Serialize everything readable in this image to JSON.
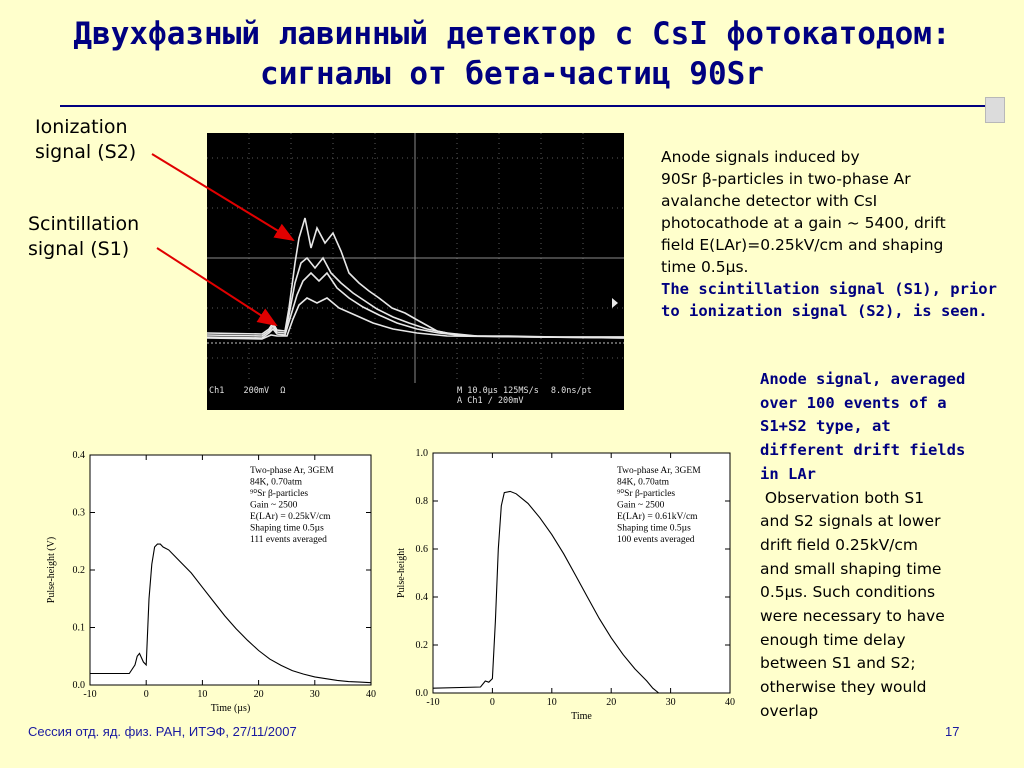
{
  "slide": {
    "title_line1": "Двухфазный лавинный детектор с CsI фотокатодом:",
    "title_line2": "сигналы от бета-частиц 90Sr",
    "footer": "Сессия отд. яд. физ. РАН, ИТЭФ, 27/11/2007",
    "page_number": "17"
  },
  "labels": {
    "ionization_line1": "Ionization",
    "ionization_line2": "signal (S2)",
    "scintillation_line1": "Scintillation",
    "scintillation_line2": "signal (S1)",
    "arrow_color": "#e00000"
  },
  "scope": {
    "ch_label": "Ch1",
    "scale": "200mV",
    "ohm": "Ω",
    "time_setting": "M 10.0µs 125MS/s",
    "resolution": "8.0ns/pt",
    "trigger": "A  Ch1  ∕  200mV"
  },
  "description": {
    "line1": "Anode signals induced by",
    "line2": "90Sr β-particles in two-phase Ar",
    "line3": "avalanche detector with CsI",
    "line4": "photocathode at a gain ~ 5400, drift",
    "line5": "field E(LAr)=0.25kV/cm and shaping",
    "line6": "time 0.5µs.",
    "bold1": "The scintillation signal (S1), prior",
    "bold2": "to ionization signal (S2), is seen."
  },
  "averaged": {
    "bold1": "Anode signal, averaged",
    "bold2": "over 100 events of a",
    "bold3": "S1+S2 type, at",
    "bold4": "different drift fields",
    "bold5": "in LAr",
    "text1": " Observation both S1",
    "text2": "and S2 signals at lower",
    "text3": "drift field 0.25kV/cm",
    "text4": "and small shaping time",
    "text5": "0.5µs. Such conditions",
    "text6": "were necessary to have",
    "text7": "enough time delay",
    "text8": "between S1 and S2;",
    "text9": "otherwise they would",
    "text10": "overlap"
  },
  "chart_data": [
    {
      "type": "line",
      "xlabel": "Time (µs)",
      "ylabel": "Pulse-height (V)",
      "xlim": [
        -10,
        40
      ],
      "ylim": [
        0,
        0.4
      ],
      "xticks": [
        "-10",
        "0",
        "10",
        "20",
        "30",
        "40"
      ],
      "yticks": [
        "0.0",
        "0.1",
        "0.2",
        "0.3",
        "0.4"
      ],
      "annotation": [
        "Two-phase Ar, 3GEM",
        "84K, 0.70atm",
        "⁹⁰Sr β-particles",
        "Gain ~ 2500",
        "E(LAr) = 0.25kV/cm",
        "Shaping time 0.5µs",
        "111 events averaged"
      ],
      "x": [
        -10,
        -3,
        -2,
        -1.6,
        -1.2,
        -0.5,
        0,
        0.5,
        1,
        1.5,
        2,
        2.5,
        3,
        4,
        5,
        6,
        8,
        10,
        12,
        14,
        16,
        18,
        20,
        22,
        24,
        26,
        28,
        30,
        32,
        34,
        36,
        38,
        40
      ],
      "y": [
        0.02,
        0.02,
        0.035,
        0.05,
        0.055,
        0.04,
        0.035,
        0.15,
        0.21,
        0.24,
        0.245,
        0.245,
        0.24,
        0.235,
        0.225,
        0.215,
        0.195,
        0.17,
        0.145,
        0.12,
        0.098,
        0.078,
        0.06,
        0.045,
        0.034,
        0.025,
        0.019,
        0.014,
        0.011,
        0.008,
        0.006,
        0.005,
        0.004
      ]
    },
    {
      "type": "line",
      "xlabel": "Time",
      "ylabel": "Pulse-height",
      "xlim": [
        -10,
        40
      ],
      "ylim": [
        0,
        1.0
      ],
      "xticks": [
        "-10",
        "0",
        "10",
        "20",
        "30",
        "40"
      ],
      "yticks": [
        "0.0",
        "0.2",
        "0.4",
        "0.6",
        "0.8",
        "1.0"
      ],
      "annotation": [
        "Two-phase Ar, 3GEM",
        "84K, 0.70atm",
        "⁹⁰Sr β-particles",
        "Gain ~ 2500",
        "E(LAr) = 0.61kV/cm",
        "Shaping time 0.5µs",
        "100 events averaged"
      ],
      "x": [
        -10,
        -2,
        -1.2,
        -0.6,
        0,
        0.5,
        1,
        1.5,
        2,
        3,
        4,
        6,
        8,
        10,
        12,
        14,
        16,
        18,
        20,
        22,
        24,
        26,
        27,
        28
      ],
      "y": [
        0.02,
        0.025,
        0.05,
        0.045,
        0.06,
        0.3,
        0.6,
        0.78,
        0.835,
        0.84,
        0.83,
        0.79,
        0.73,
        0.66,
        0.58,
        0.49,
        0.4,
        0.31,
        0.23,
        0.16,
        0.1,
        0.05,
        0.02,
        0.0
      ]
    }
  ]
}
